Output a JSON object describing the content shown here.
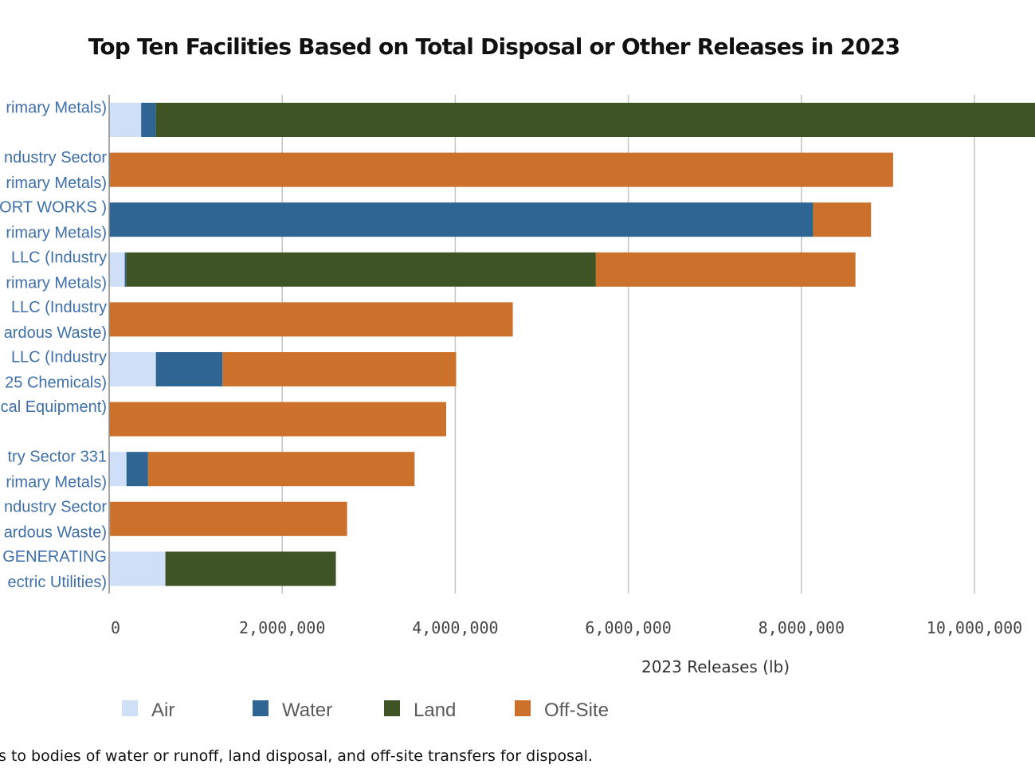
{
  "chart_data": {
    "type": "bar",
    "orientation": "horizontal",
    "stacked": true,
    "title": "Top Ten Facilities Based on Total Disposal or Other Releases in 2023",
    "xlabel": "2023 Releases (lb)",
    "xlim": [
      0,
      10700000
    ],
    "xticks": [
      0,
      2000000,
      4000000,
      6000000,
      8000000,
      10000000
    ],
    "xtick_labels": [
      "0",
      "2,000,000",
      "4,000,000",
      "6,000,000",
      "8,000,000",
      "10,000,000"
    ],
    "grid": true,
    "legend_position": "bottom",
    "categories": [
      [
        "rimary Metals)"
      ],
      [
        "ndustry Sector",
        "rimary Metals)"
      ],
      [
        "ORT WORKS )",
        "rimary Metals)"
      ],
      [
        "LLC (Industry",
        "rimary Metals)"
      ],
      [
        "LLC (Industry",
        "ardous Waste)"
      ],
      [
        "LLC (Industry",
        "25 Chemicals)"
      ],
      [
        "cal Equipment)"
      ],
      [
        "try Sector 331",
        "rimary Metals)"
      ],
      [
        "ndustry Sector",
        "ardous Waste)"
      ],
      [
        "GENERATING",
        "ectric Utilities)"
      ]
    ],
    "series": [
      {
        "name": "Air",
        "color": "#cfdff7",
        "values": [
          370000,
          5000,
          5000,
          180000,
          5000,
          540000,
          5000,
          200000,
          10000,
          650000
        ]
      },
      {
        "name": "Water",
        "color": "#2e6593",
        "values": [
          170000,
          5000,
          8130000,
          15000,
          0,
          770000,
          0,
          250000,
          0,
          0
        ]
      },
      {
        "name": "Land",
        "color": "#3f5425",
        "values": [
          10160000,
          0,
          0,
          5430000,
          0,
          0,
          0,
          0,
          0,
          1970000
        ]
      },
      {
        "name": "Off-Site",
        "color": "#cc712c",
        "values": [
          0,
          9050000,
          670000,
          3000000,
          4660000,
          2700000,
          3890000,
          3080000,
          2740000,
          0
        ]
      }
    ]
  },
  "footnote": "s to bodies of water or runoff, land disposal, and off-site transfers for disposal."
}
